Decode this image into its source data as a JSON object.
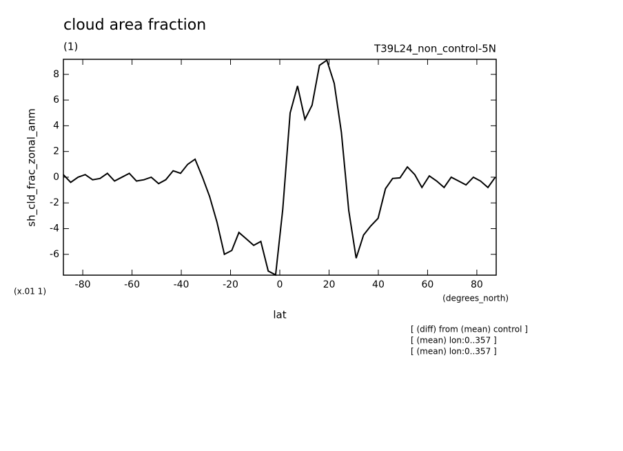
{
  "chart_data": {
    "type": "line",
    "title": "cloud area fraction",
    "subtitle_left": "(1)",
    "subtitle_right": "T39L24_non_control-5N",
    "y_label": "sh_cld_frac_zonal_anm",
    "y_scale_label": "(x.01 1)",
    "x_units": "(degrees_north)",
    "x_label": "lat",
    "notes": [
      "[ (diff) from (mean) control ]",
      "[ (mean) lon:0..357 ]",
      "[ (mean) lon:0..357 ]"
    ],
    "xlim": [
      -87.86,
      87.86
    ],
    "ylim": [
      -7.62,
      9.17
    ],
    "xticks": [
      -80,
      -60,
      -40,
      -20,
      0,
      20,
      40,
      60,
      80
    ],
    "yticks": [
      -6,
      -4,
      -2,
      0,
      2,
      4,
      6,
      8
    ],
    "series": [
      {
        "color": "#000000",
        "x": [
          -87.9,
          -84.9,
          -81.9,
          -79,
          -76,
          -73,
          -70,
          -67.1,
          -64.1,
          -61.1,
          -58.2,
          -55.2,
          -52.2,
          -49.2,
          -46.3,
          -43.3,
          -40.3,
          -37.4,
          -34.4,
          -31.4,
          -28.5,
          -25.5,
          -22.5,
          -19.5,
          -16.6,
          -13.6,
          -10.6,
          -7.7,
          -4.7,
          -1.7,
          1.2,
          4.2,
          7.2,
          10.2,
          13.1,
          16.1,
          19.1,
          22.1,
          25.0,
          28.0,
          31.0,
          34.0,
          36.9,
          39.9,
          42.9,
          45.8,
          48.8,
          51.8,
          54.8,
          57.7,
          60.7,
          63.7,
          66.7,
          69.6,
          72.6,
          75.6,
          78.6,
          81.5,
          84.5,
          87.5
        ],
        "values": [
          0.2,
          -0.4,
          0,
          0.2,
          -0.2,
          -0.1,
          0.3,
          -0.3,
          0,
          0.3,
          -0.3,
          -0.2,
          0,
          -0.5,
          -0.2,
          0.5,
          0.3,
          1.0,
          1.4,
          0,
          -1.5,
          -3.5,
          -6.0,
          -5.7,
          -4.3,
          -4.8,
          -5.3,
          -5.0,
          -7.3,
          -7.6,
          -2.5,
          5.0,
          7.1,
          4.5,
          5.6,
          8.7,
          9.1,
          7.3,
          3.5,
          -2.6,
          -6.3,
          -4.5,
          -3.8,
          -3.2,
          -0.9,
          -0.1,
          -0.05,
          0.8,
          0.2,
          -0.8,
          0.1,
          -0.3,
          -0.8,
          0,
          -0.3,
          -0.6,
          0,
          -0.3,
          -0.8,
          0
        ]
      }
    ]
  }
}
